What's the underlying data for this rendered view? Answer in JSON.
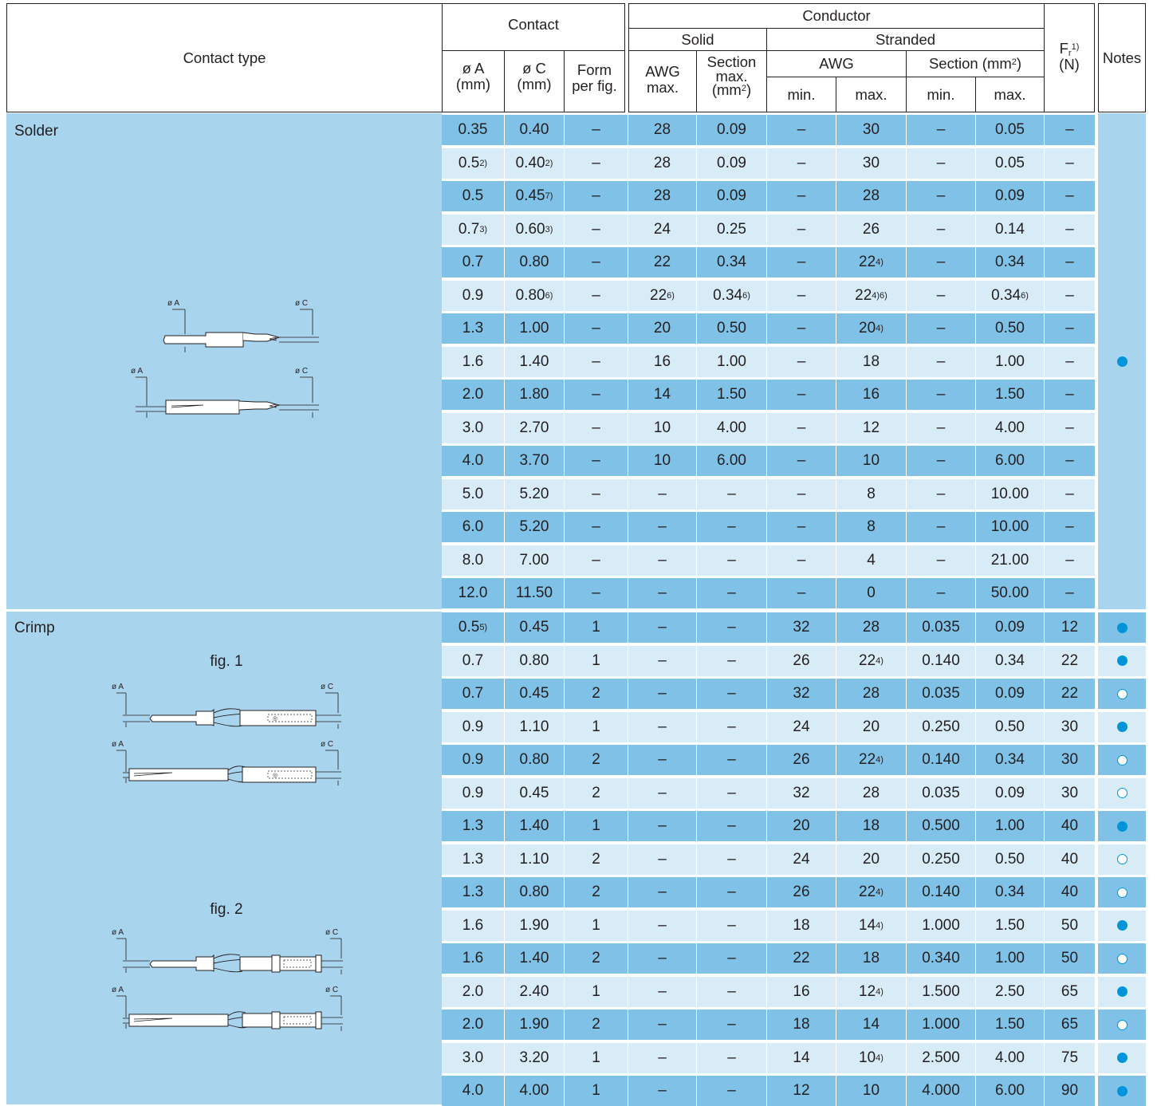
{
  "header": {
    "contact_type": "Contact type",
    "contact": "Contact",
    "conductor": "Conductor",
    "solid": "Solid",
    "stranded": "Stranded",
    "dia_a": "ø A",
    "dia_c": "ø C",
    "mm_unit": "(mm)",
    "form": "Form",
    "per_fig": "per fig.",
    "awg": "AWG",
    "max_dot": "max.",
    "section": "Section",
    "mm2_open": "(mm",
    "mm2_exp": "2",
    "mm2_close": ")",
    "section_mm2": "Section (mm",
    "min_dot": "min.",
    "fr_f": "F",
    "fr_sub": "r",
    "fr_sup": "1)",
    "fr_unit": "(N)",
    "notes": "Notes"
  },
  "figures": {
    "dia_a_label": "ø A",
    "dia_c_label": "ø C",
    "fig1": "fig. 1",
    "fig2": "fig. 2"
  },
  "colors": {
    "band": "#a8d4ee",
    "row_dark": "#7fc1e7",
    "row_light": "#d8ecf8",
    "note_dot": "#0095db"
  },
  "solder": {
    "label": "Solder",
    "rows": [
      [
        [
          "0.35",
          ""
        ],
        [
          "0.40",
          ""
        ],
        [
          "–",
          ""
        ],
        [
          "28",
          ""
        ],
        [
          "0.09",
          ""
        ],
        [
          "–",
          ""
        ],
        [
          "30",
          ""
        ],
        [
          "–",
          ""
        ],
        [
          "0.05",
          ""
        ],
        [
          "–",
          ""
        ]
      ],
      [
        [
          "0.5",
          "2)"
        ],
        [
          "0.40",
          "2)"
        ],
        [
          "–",
          ""
        ],
        [
          "28",
          ""
        ],
        [
          "0.09",
          ""
        ],
        [
          "–",
          ""
        ],
        [
          "30",
          ""
        ],
        [
          "–",
          ""
        ],
        [
          "0.05",
          ""
        ],
        [
          "–",
          ""
        ]
      ],
      [
        [
          "0.5",
          ""
        ],
        [
          "0.45",
          "7)"
        ],
        [
          "–",
          ""
        ],
        [
          "28",
          ""
        ],
        [
          "0.09",
          ""
        ],
        [
          "–",
          ""
        ],
        [
          "28",
          ""
        ],
        [
          "–",
          ""
        ],
        [
          "0.09",
          ""
        ],
        [
          "–",
          ""
        ]
      ],
      [
        [
          "0.7",
          "3)"
        ],
        [
          "0.60",
          "3)"
        ],
        [
          "–",
          ""
        ],
        [
          "24",
          ""
        ],
        [
          "0.25",
          ""
        ],
        [
          "–",
          ""
        ],
        [
          "26",
          ""
        ],
        [
          "–",
          ""
        ],
        [
          "0.14",
          ""
        ],
        [
          "–",
          ""
        ]
      ],
      [
        [
          "0.7",
          ""
        ],
        [
          "0.80",
          ""
        ],
        [
          "–",
          ""
        ],
        [
          "22",
          ""
        ],
        [
          "0.34",
          ""
        ],
        [
          "–",
          ""
        ],
        [
          "22",
          "4)"
        ],
        [
          "–",
          ""
        ],
        [
          "0.34",
          ""
        ],
        [
          "–",
          ""
        ]
      ],
      [
        [
          "0.9",
          ""
        ],
        [
          "0.80",
          "6)"
        ],
        [
          "–",
          ""
        ],
        [
          "22",
          "6)"
        ],
        [
          "0.34",
          "6)"
        ],
        [
          "–",
          ""
        ],
        [
          "22",
          "4)6)"
        ],
        [
          "–",
          ""
        ],
        [
          "0.34",
          "6)"
        ],
        [
          "–",
          ""
        ]
      ],
      [
        [
          "1.3",
          ""
        ],
        [
          "1.00",
          ""
        ],
        [
          "–",
          ""
        ],
        [
          "20",
          ""
        ],
        [
          "0.50",
          ""
        ],
        [
          "–",
          ""
        ],
        [
          "20",
          "4)"
        ],
        [
          "–",
          ""
        ],
        [
          "0.50",
          ""
        ],
        [
          "–",
          ""
        ]
      ],
      [
        [
          "1.6",
          ""
        ],
        [
          "1.40",
          ""
        ],
        [
          "–",
          ""
        ],
        [
          "16",
          ""
        ],
        [
          "1.00",
          ""
        ],
        [
          "–",
          ""
        ],
        [
          "18",
          ""
        ],
        [
          "–",
          ""
        ],
        [
          "1.00",
          ""
        ],
        [
          "–",
          ""
        ]
      ],
      [
        [
          "2.0",
          ""
        ],
        [
          "1.80",
          ""
        ],
        [
          "–",
          ""
        ],
        [
          "14",
          ""
        ],
        [
          "1.50",
          ""
        ],
        [
          "–",
          ""
        ],
        [
          "16",
          ""
        ],
        [
          "–",
          ""
        ],
        [
          "1.50",
          ""
        ],
        [
          "–",
          ""
        ]
      ],
      [
        [
          "3.0",
          ""
        ],
        [
          "2.70",
          ""
        ],
        [
          "–",
          ""
        ],
        [
          "10",
          ""
        ],
        [
          "4.00",
          ""
        ],
        [
          "–",
          ""
        ],
        [
          "12",
          ""
        ],
        [
          "–",
          ""
        ],
        [
          "4.00",
          ""
        ],
        [
          "–",
          ""
        ]
      ],
      [
        [
          "4.0",
          ""
        ],
        [
          "3.70",
          ""
        ],
        [
          "–",
          ""
        ],
        [
          "10",
          ""
        ],
        [
          "6.00",
          ""
        ],
        [
          "–",
          ""
        ],
        [
          "10",
          ""
        ],
        [
          "–",
          ""
        ],
        [
          "6.00",
          ""
        ],
        [
          "–",
          ""
        ]
      ],
      [
        [
          "5.0",
          ""
        ],
        [
          "5.20",
          ""
        ],
        [
          "–",
          ""
        ],
        [
          "–",
          ""
        ],
        [
          "–",
          ""
        ],
        [
          "–",
          ""
        ],
        [
          "8",
          ""
        ],
        [
          "–",
          ""
        ],
        [
          "10.00",
          ""
        ],
        [
          "–",
          ""
        ]
      ],
      [
        [
          "6.0",
          ""
        ],
        [
          "5.20",
          ""
        ],
        [
          "–",
          ""
        ],
        [
          "–",
          ""
        ],
        [
          "–",
          ""
        ],
        [
          "–",
          ""
        ],
        [
          "8",
          ""
        ],
        [
          "–",
          ""
        ],
        [
          "10.00",
          ""
        ],
        [
          "–",
          ""
        ]
      ],
      [
        [
          "8.0",
          ""
        ],
        [
          "7.00",
          ""
        ],
        [
          "–",
          ""
        ],
        [
          "–",
          ""
        ],
        [
          "–",
          ""
        ],
        [
          "–",
          ""
        ],
        [
          "4",
          ""
        ],
        [
          "–",
          ""
        ],
        [
          "21.00",
          ""
        ],
        [
          "–",
          ""
        ]
      ],
      [
        [
          "12.0",
          ""
        ],
        [
          "11.50",
          ""
        ],
        [
          "–",
          ""
        ],
        [
          "–",
          ""
        ],
        [
          "–",
          ""
        ],
        [
          "–",
          ""
        ],
        [
          "0",
          ""
        ],
        [
          "–",
          ""
        ],
        [
          "50.00",
          ""
        ],
        [
          "–",
          ""
        ]
      ]
    ],
    "notes": [
      "",
      "",
      "",
      "",
      "",
      "",
      "",
      "filled",
      "",
      "",
      "",
      "",
      "",
      "",
      ""
    ]
  },
  "crimp": {
    "label": "Crimp",
    "rows": [
      [
        [
          "0.5",
          "5)"
        ],
        [
          "0.45",
          ""
        ],
        [
          "1",
          ""
        ],
        [
          "–",
          ""
        ],
        [
          "–",
          ""
        ],
        [
          "32",
          ""
        ],
        [
          "28",
          ""
        ],
        [
          "0.035",
          ""
        ],
        [
          "0.09",
          ""
        ],
        [
          "12",
          ""
        ]
      ],
      [
        [
          "0.7",
          ""
        ],
        [
          "0.80",
          ""
        ],
        [
          "1",
          ""
        ],
        [
          "–",
          ""
        ],
        [
          "–",
          ""
        ],
        [
          "26",
          ""
        ],
        [
          "22",
          "4)"
        ],
        [
          "0.140",
          ""
        ],
        [
          "0.34",
          ""
        ],
        [
          "22",
          ""
        ]
      ],
      [
        [
          "0.7",
          ""
        ],
        [
          "0.45",
          ""
        ],
        [
          "2",
          ""
        ],
        [
          "–",
          ""
        ],
        [
          "–",
          ""
        ],
        [
          "32",
          ""
        ],
        [
          "28",
          ""
        ],
        [
          "0.035",
          ""
        ],
        [
          "0.09",
          ""
        ],
        [
          "22",
          ""
        ]
      ],
      [
        [
          "0.9",
          ""
        ],
        [
          "1.10",
          ""
        ],
        [
          "1",
          ""
        ],
        [
          "–",
          ""
        ],
        [
          "–",
          ""
        ],
        [
          "24",
          ""
        ],
        [
          "20",
          ""
        ],
        [
          "0.250",
          ""
        ],
        [
          "0.50",
          ""
        ],
        [
          "30",
          ""
        ]
      ],
      [
        [
          "0.9",
          ""
        ],
        [
          "0.80",
          ""
        ],
        [
          "2",
          ""
        ],
        [
          "–",
          ""
        ],
        [
          "–",
          ""
        ],
        [
          "26",
          ""
        ],
        [
          "22",
          "4)"
        ],
        [
          "0.140",
          ""
        ],
        [
          "0.34",
          ""
        ],
        [
          "30",
          ""
        ]
      ],
      [
        [
          "0.9",
          ""
        ],
        [
          "0.45",
          ""
        ],
        [
          "2",
          ""
        ],
        [
          "–",
          ""
        ],
        [
          "–",
          ""
        ],
        [
          "32",
          ""
        ],
        [
          "28",
          ""
        ],
        [
          "0.035",
          ""
        ],
        [
          "0.09",
          ""
        ],
        [
          "30",
          ""
        ]
      ],
      [
        [
          "1.3",
          ""
        ],
        [
          "1.40",
          ""
        ],
        [
          "1",
          ""
        ],
        [
          "–",
          ""
        ],
        [
          "–",
          ""
        ],
        [
          "20",
          ""
        ],
        [
          "18",
          ""
        ],
        [
          "0.500",
          ""
        ],
        [
          "1.00",
          ""
        ],
        [
          "40",
          ""
        ]
      ],
      [
        [
          "1.3",
          ""
        ],
        [
          "1.10",
          ""
        ],
        [
          "2",
          ""
        ],
        [
          "–",
          ""
        ],
        [
          "–",
          ""
        ],
        [
          "24",
          ""
        ],
        [
          "20",
          ""
        ],
        [
          "0.250",
          ""
        ],
        [
          "0.50",
          ""
        ],
        [
          "40",
          ""
        ]
      ],
      [
        [
          "1.3",
          ""
        ],
        [
          "0.80",
          ""
        ],
        [
          "2",
          ""
        ],
        [
          "–",
          ""
        ],
        [
          "–",
          ""
        ],
        [
          "26",
          ""
        ],
        [
          "22",
          "4)"
        ],
        [
          "0.140",
          ""
        ],
        [
          "0.34",
          ""
        ],
        [
          "40",
          ""
        ]
      ],
      [
        [
          "1.6",
          ""
        ],
        [
          "1.90",
          ""
        ],
        [
          "1",
          ""
        ],
        [
          "–",
          ""
        ],
        [
          "–",
          ""
        ],
        [
          "18",
          ""
        ],
        [
          "14",
          "4)"
        ],
        [
          "1.000",
          ""
        ],
        [
          "1.50",
          ""
        ],
        [
          "50",
          ""
        ]
      ],
      [
        [
          "1.6",
          ""
        ],
        [
          "1.40",
          ""
        ],
        [
          "2",
          ""
        ],
        [
          "–",
          ""
        ],
        [
          "–",
          ""
        ],
        [
          "22",
          ""
        ],
        [
          "18",
          ""
        ],
        [
          "0.340",
          ""
        ],
        [
          "1.00",
          ""
        ],
        [
          "50",
          ""
        ]
      ],
      [
        [
          "2.0",
          ""
        ],
        [
          "2.40",
          ""
        ],
        [
          "1",
          ""
        ],
        [
          "–",
          ""
        ],
        [
          "–",
          ""
        ],
        [
          "16",
          ""
        ],
        [
          "12",
          "4)"
        ],
        [
          "1.500",
          ""
        ],
        [
          "2.50",
          ""
        ],
        [
          "65",
          ""
        ]
      ],
      [
        [
          "2.0",
          ""
        ],
        [
          "1.90",
          ""
        ],
        [
          "2",
          ""
        ],
        [
          "–",
          ""
        ],
        [
          "–",
          ""
        ],
        [
          "18",
          ""
        ],
        [
          "14",
          ""
        ],
        [
          "1.000",
          ""
        ],
        [
          "1.50",
          ""
        ],
        [
          "65",
          ""
        ]
      ],
      [
        [
          "3.0",
          ""
        ],
        [
          "3.20",
          ""
        ],
        [
          "1",
          ""
        ],
        [
          "–",
          ""
        ],
        [
          "–",
          ""
        ],
        [
          "14",
          ""
        ],
        [
          "10",
          "4)"
        ],
        [
          "2.500",
          ""
        ],
        [
          "4.00",
          ""
        ],
        [
          "75",
          ""
        ]
      ],
      [
        [
          "4.0",
          ""
        ],
        [
          "4.00",
          ""
        ],
        [
          "1",
          ""
        ],
        [
          "–",
          ""
        ],
        [
          "–",
          ""
        ],
        [
          "12",
          ""
        ],
        [
          "10",
          ""
        ],
        [
          "4.000",
          ""
        ],
        [
          "6.00",
          ""
        ],
        [
          "90",
          ""
        ]
      ]
    ],
    "notes": [
      "filled",
      "filled",
      "open",
      "filled",
      "open",
      "open",
      "filled",
      "open",
      "open",
      "filled",
      "open",
      "filled",
      "open",
      "filled",
      "filled"
    ]
  }
}
